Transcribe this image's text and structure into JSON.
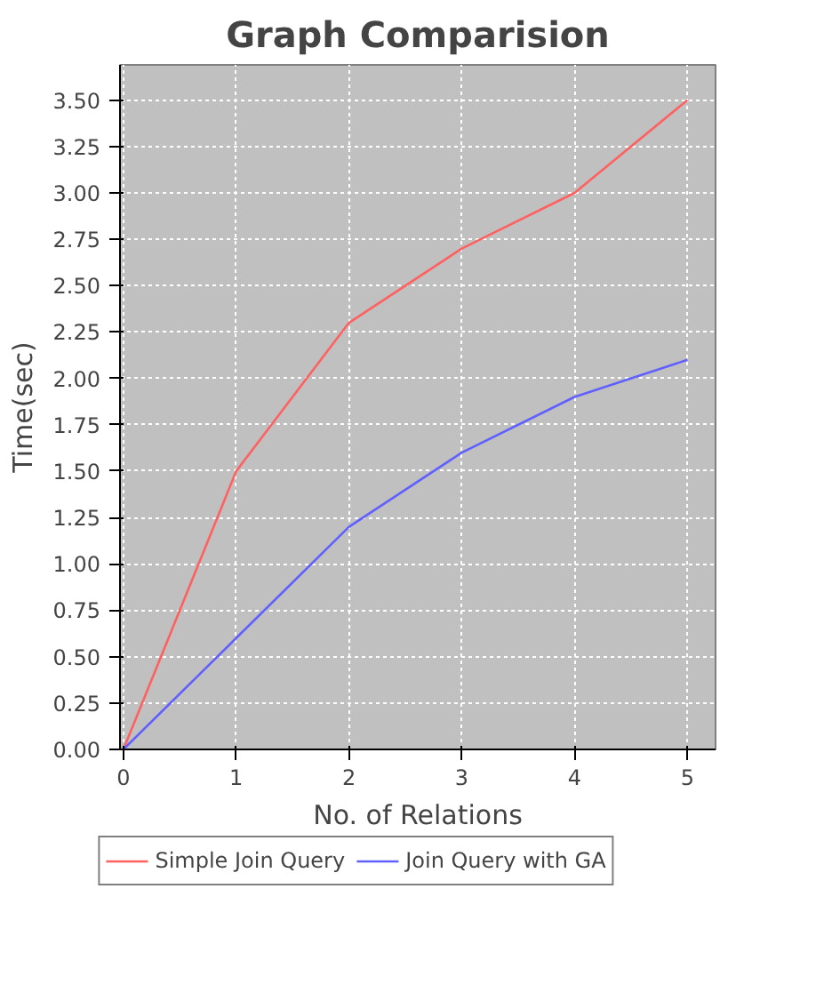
{
  "chart_data": {
    "type": "line",
    "title": "Graph Comparision",
    "xlabel": "No. of Relations",
    "ylabel": "Time(sec)",
    "x": [
      0,
      1,
      2,
      3,
      4,
      5
    ],
    "series": [
      {
        "name": "Simple Join Query",
        "color": "#ff6060",
        "values": [
          0,
          1.5,
          2.3,
          2.7,
          3.0,
          3.5
        ]
      },
      {
        "name": "Join Query with GA",
        "color": "#6060ff",
        "values": [
          0,
          0.6,
          1.2,
          1.6,
          1.9,
          2.1
        ]
      }
    ],
    "xlim": [
      -0.03,
      5.25
    ],
    "ylim": [
      0,
      3.69
    ],
    "xticks": [
      0,
      1,
      2,
      3,
      4,
      5
    ],
    "yticks": [
      {
        "value": 0,
        "label": "0.00"
      },
      {
        "value": 0.25,
        "label": "0.25"
      },
      {
        "value": 0.5,
        "label": "0.50"
      },
      {
        "value": 0.75,
        "label": "0.75"
      },
      {
        "value": 1,
        "label": "1.00"
      },
      {
        "value": 1.25,
        "label": "1.25"
      },
      {
        "value": 1.5,
        "label": "1.50"
      },
      {
        "value": 1.75,
        "label": "1.75"
      },
      {
        "value": 2,
        "label": "2.00"
      },
      {
        "value": 2.25,
        "label": "2.25"
      },
      {
        "value": 2.5,
        "label": "2.50"
      },
      {
        "value": 2.75,
        "label": "2.75"
      },
      {
        "value": 3,
        "label": "3.00"
      },
      {
        "value": 3.25,
        "label": "3.25"
      },
      {
        "value": 3.5,
        "label": "3.50"
      }
    ],
    "grid": true,
    "legend": "bottom",
    "marker": "none",
    "line_style": "solid"
  }
}
